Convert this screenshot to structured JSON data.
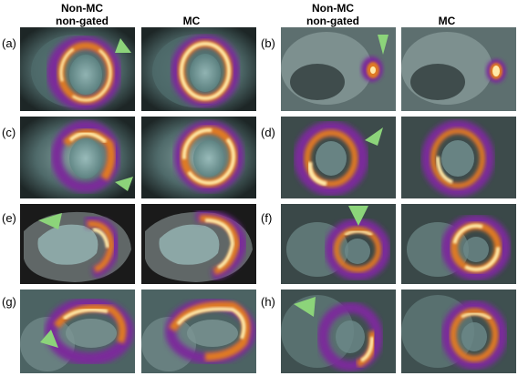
{
  "headers": {
    "left_nonmc": "Non-MC\nnon-gated",
    "left_mc": "MC",
    "right_nonmc": "Non-MC\nnon-gated",
    "right_mc": "MC"
  },
  "labels": {
    "a": "(a)",
    "b": "(b)",
    "c": "(c)",
    "d": "(d)",
    "e": "(e)",
    "f": "(f)",
    "g": "(g)",
    "h": "(h)"
  },
  "colors": {
    "arrow": "#8cd47a",
    "tracer_hot": "#ffe9a8",
    "tracer_mid": "#e07a20",
    "tracer_low": "#7a2a9a"
  }
}
